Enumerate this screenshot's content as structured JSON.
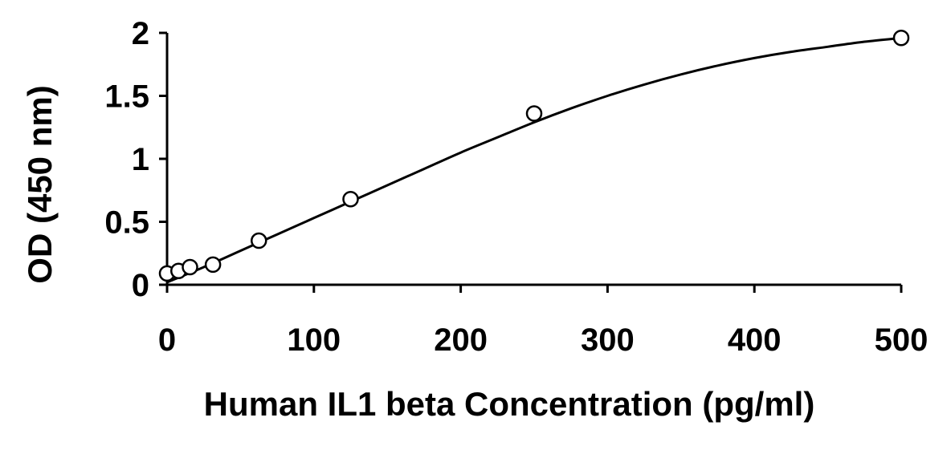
{
  "chart_data": {
    "type": "scatter",
    "title": "",
    "xlabel": "Human IL1 beta Concentration (pg/ml)",
    "ylabel": "OD (450 nm)",
    "xlim": [
      0,
      500
    ],
    "ylim": [
      0,
      2
    ],
    "x_ticks": [
      0,
      100,
      200,
      300,
      400,
      500
    ],
    "x_tick_labels": [
      "0",
      "100",
      "200",
      "300",
      "400",
      "500"
    ],
    "y_ticks": [
      0,
      0.5,
      1,
      1.5,
      2
    ],
    "y_tick_labels": [
      "0",
      "0.5",
      "1",
      "1.5",
      "2"
    ],
    "grid": false,
    "legend": "none",
    "series": [
      {
        "x": [
          0,
          7.8,
          15.6,
          31.25,
          62.5,
          125,
          250,
          500
        ],
        "y": [
          0.09,
          0.11,
          0.14,
          0.16,
          0.35,
          0.68,
          1.36,
          1.96
        ],
        "marker": "open-circle"
      }
    ],
    "fit_curve": {
      "x": [
        0,
        25,
        50,
        75,
        100,
        125,
        150,
        175,
        200,
        225,
        250,
        275,
        300,
        325,
        350,
        375,
        400,
        425,
        450,
        475,
        500
      ],
      "y": [
        0.02,
        0.14,
        0.27,
        0.4,
        0.53,
        0.66,
        0.79,
        0.92,
        1.05,
        1.17,
        1.29,
        1.4,
        1.5,
        1.59,
        1.67,
        1.74,
        1.8,
        1.85,
        1.89,
        1.93,
        1.96
      ]
    },
    "colors": {
      "marker_fill": "#ffffff",
      "line": "#000000",
      "text": "#000000"
    }
  }
}
